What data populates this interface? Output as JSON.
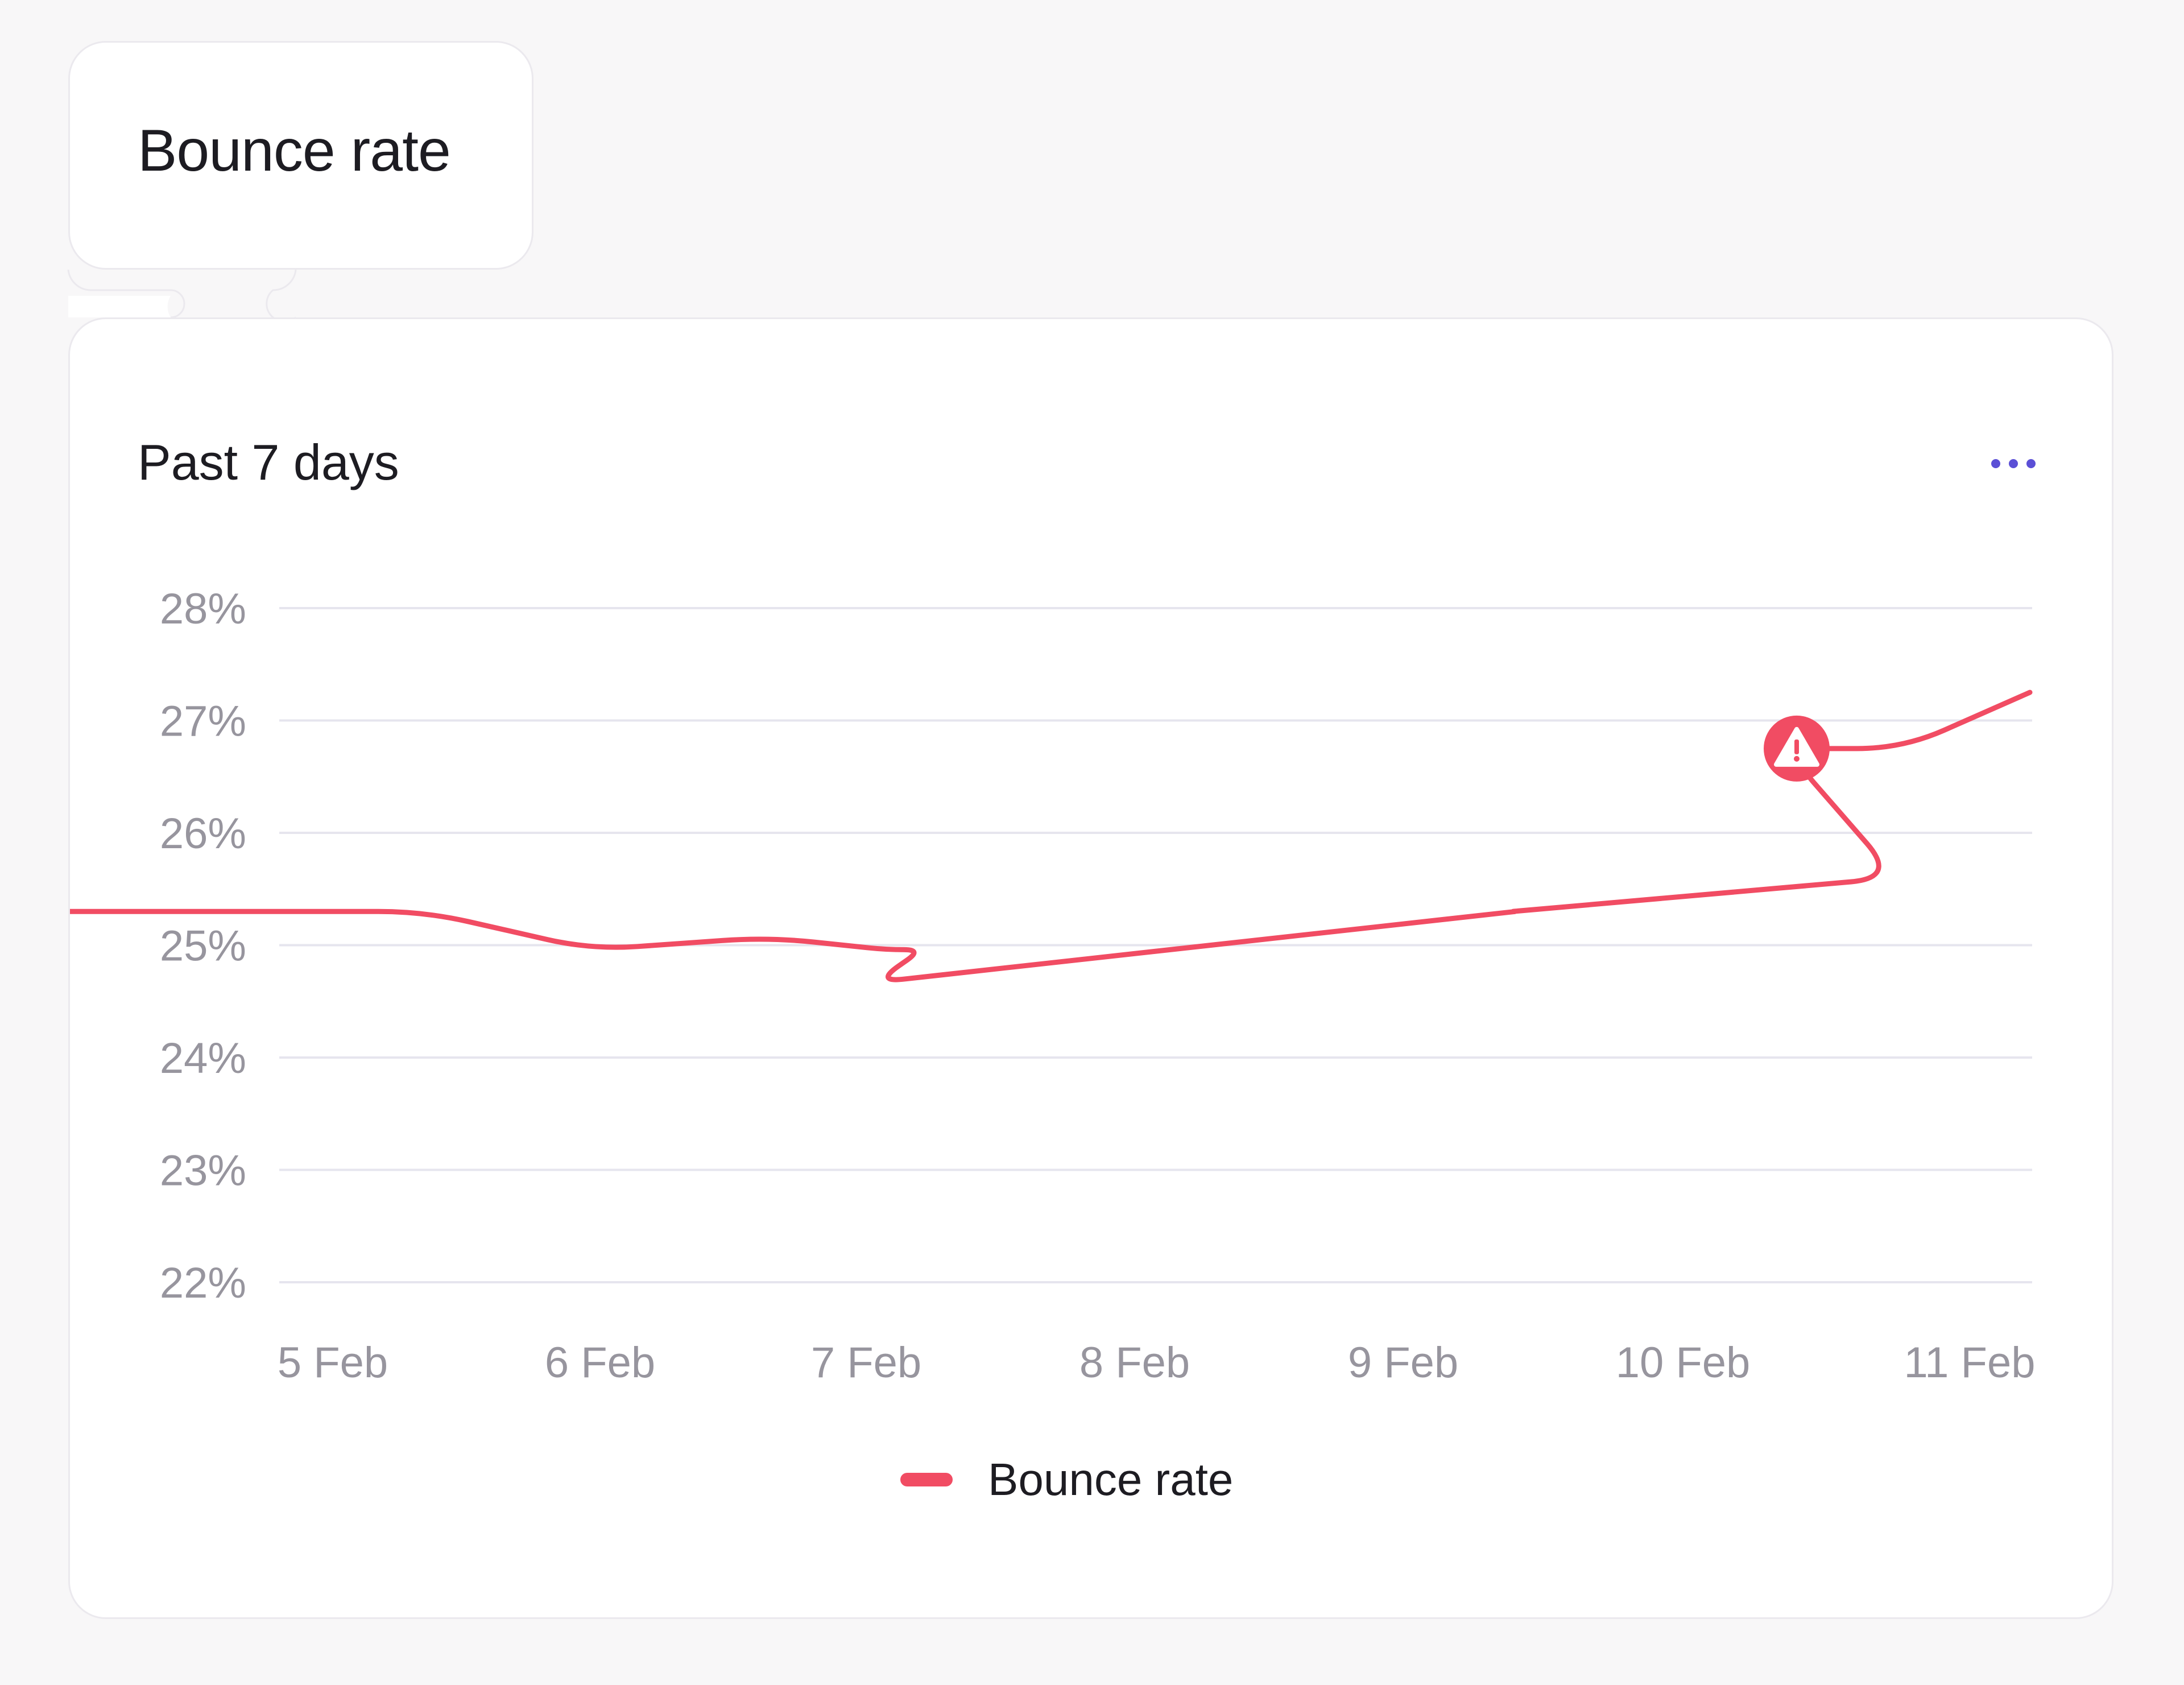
{
  "header": {
    "title": "Bounce rate"
  },
  "card": {
    "subtitle": "Past 7 days",
    "menu_icon": "more-horizontal-icon",
    "alert_icon": "warning-triangle-icon"
  },
  "colors": {
    "series": "#f14c63",
    "menu": "#5b4fd6",
    "grid": "#e6e5ee",
    "tick_text": "#97959e"
  },
  "chart_data": {
    "type": "line",
    "x": [
      "5 Feb",
      "6 Feb",
      "7 Feb",
      "8 Feb",
      "9 Feb",
      "10 Feb",
      "11 Feb"
    ],
    "x_tick_labels": [
      "5 Feb",
      "6 Feb",
      "7 Feb",
      "8 Feb",
      "9 Feb",
      "10 Feb",
      "11 Feb"
    ],
    "y_tick_labels": [
      "28%",
      "27%",
      "26%",
      "25%",
      "24%",
      "23%",
      "22%"
    ],
    "ylim": [
      22,
      28
    ],
    "y_unit": "%",
    "grid": true,
    "legend_position": "bottom-center",
    "series": [
      {
        "name": "Bounce rate",
        "color": "#f14c63",
        "points": [
          {
            "x": "5 Feb",
            "y": 25.3
          },
          {
            "x": "5 Feb",
            "y": 25.3
          },
          {
            "x": "6 Feb",
            "y": 24.96
          },
          {
            "x": "6 Feb",
            "y": 25.07
          },
          {
            "x": "7 Feb",
            "y": 24.96
          },
          {
            "x": "7 Feb",
            "y": 24.96
          },
          {
            "x": "8 Feb",
            "y": 24.67
          },
          {
            "x": "9 Feb",
            "y": 25.3
          },
          {
            "x": "9 Feb",
            "y": 25.3
          },
          {
            "x": "10 Feb",
            "y": 25.6
          },
          {
            "x": "10 Feb",
            "y": 26.75
          },
          {
            "x": "11 Feb",
            "y": 26.75
          },
          {
            "x": "11 Feb",
            "y": 27.25
          }
        ]
      }
    ],
    "annotations": [
      {
        "type": "alert",
        "x": "10 Feb",
        "y": 26.75,
        "icon": "warning-triangle-icon"
      }
    ]
  }
}
